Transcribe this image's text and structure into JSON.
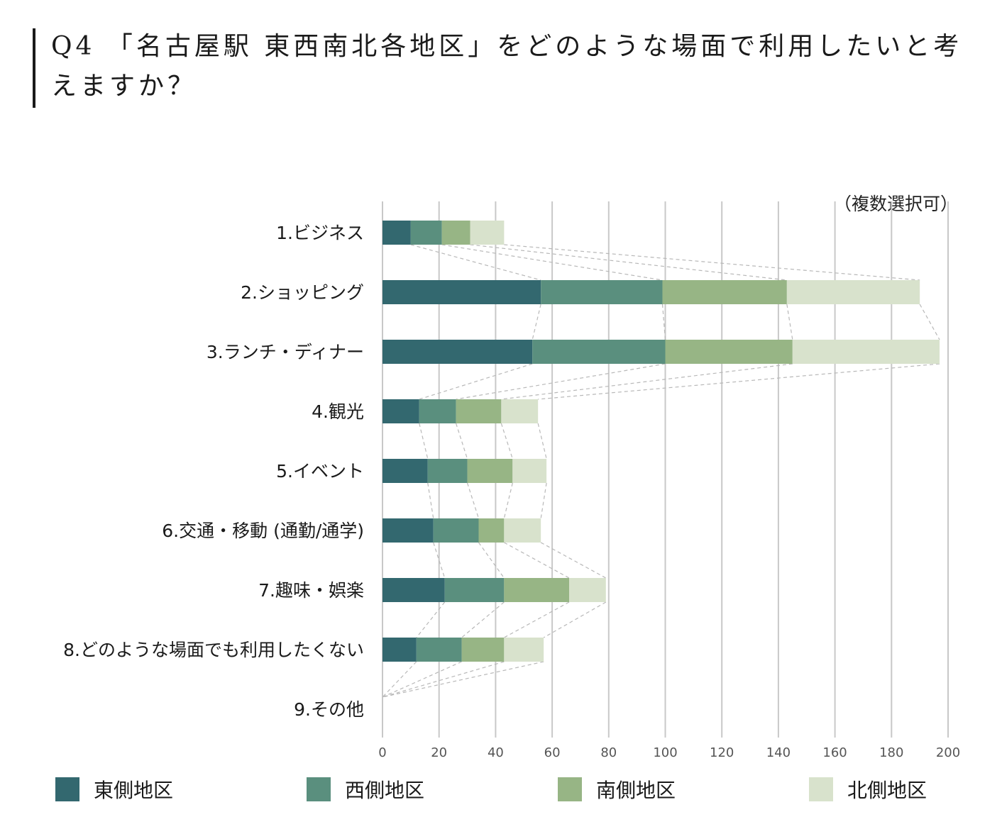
{
  "title": "Q4 「名古屋駅 東西南北各地区」をどのような場面で利用したいと考えますか？",
  "note": "（複数選択可）",
  "colors": {
    "東側地区": "#33686f",
    "西側地区": "#5a8f7e",
    "南側地区": "#97b585",
    "北側地区": "#d8e2cc",
    "grid": "#c8c8c8",
    "connector": "#b8b8b8"
  },
  "chart_data": {
    "type": "bar",
    "orientation": "horizontal",
    "stacked": true,
    "title": "Q4 「名古屋駅 東西南北各地区」をどのような場面で利用したいと考えますか？",
    "categories": [
      "1.ビジネス",
      "2.ショッピング",
      "3.ランチ・ディナー",
      "4.観光",
      "5.イベント",
      "6.交通・移動 (通勤/通学)",
      "7.趣味・娯楽",
      "8.どのような場面でも利用したくない",
      "9.その他"
    ],
    "series": [
      {
        "name": "東側地区",
        "values": [
          10,
          56,
          53,
          13,
          16,
          18,
          22,
          12,
          0
        ]
      },
      {
        "name": "西側地区",
        "values": [
          11,
          43,
          47,
          13,
          14,
          16,
          21,
          16,
          0
        ]
      },
      {
        "name": "南側地区",
        "values": [
          10,
          44,
          45,
          16,
          16,
          9,
          23,
          15,
          0
        ]
      },
      {
        "name": "北側地区",
        "values": [
          12,
          47,
          52,
          13,
          12,
          13,
          13,
          14,
          0
        ]
      }
    ],
    "xlim": [
      0,
      200
    ],
    "xticks": [
      0,
      20,
      40,
      60,
      80,
      100,
      120,
      140,
      160,
      180,
      200
    ],
    "grid": true,
    "legend_position": "bottom",
    "connector_lines": true
  }
}
